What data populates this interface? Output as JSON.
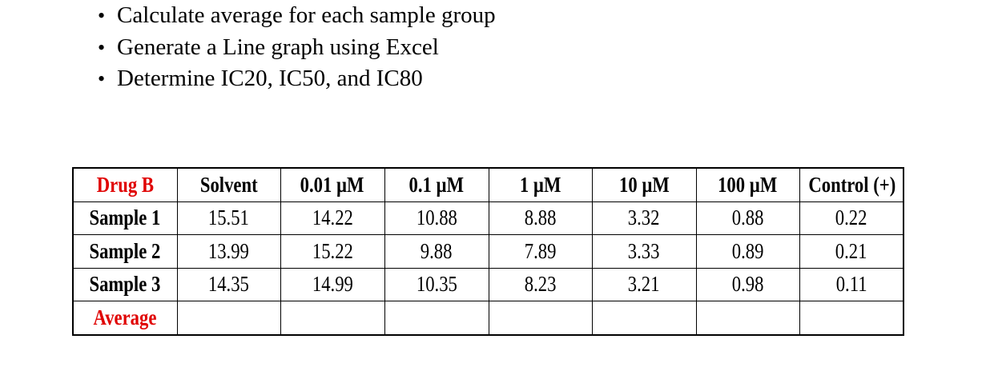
{
  "bullets": [
    "Calculate average for each sample group",
    "Generate a Line graph using Excel",
    "Determine IC20, IC50, and IC80"
  ],
  "bullet_glyph": "•",
  "table": {
    "headers": [
      "Drug B",
      "Solvent",
      "0.01 µM",
      "0.1 µM",
      "1 µM",
      "10 µM",
      "100 µM",
      "Control (+)"
    ],
    "rows": [
      {
        "label": "Sample 1",
        "values": [
          "15.51",
          "14.22",
          "10.88",
          "8.88",
          "3.32",
          "0.88",
          "0.22"
        ]
      },
      {
        "label": "Sample 2",
        "values": [
          "13.99",
          "15.22",
          "9.88",
          "7.89",
          "3.33",
          "0.89",
          "0.21"
        ]
      },
      {
        "label": "Sample 3",
        "values": [
          "14.35",
          "14.99",
          "10.35",
          "8.23",
          "3.21",
          "0.98",
          "0.11"
        ]
      },
      {
        "label": "Average",
        "values": [
          "",
          "",
          "",
          "",
          "",
          "",
          ""
        ]
      }
    ]
  },
  "colors": {
    "highlight": "#e00000",
    "text": "#000000"
  }
}
